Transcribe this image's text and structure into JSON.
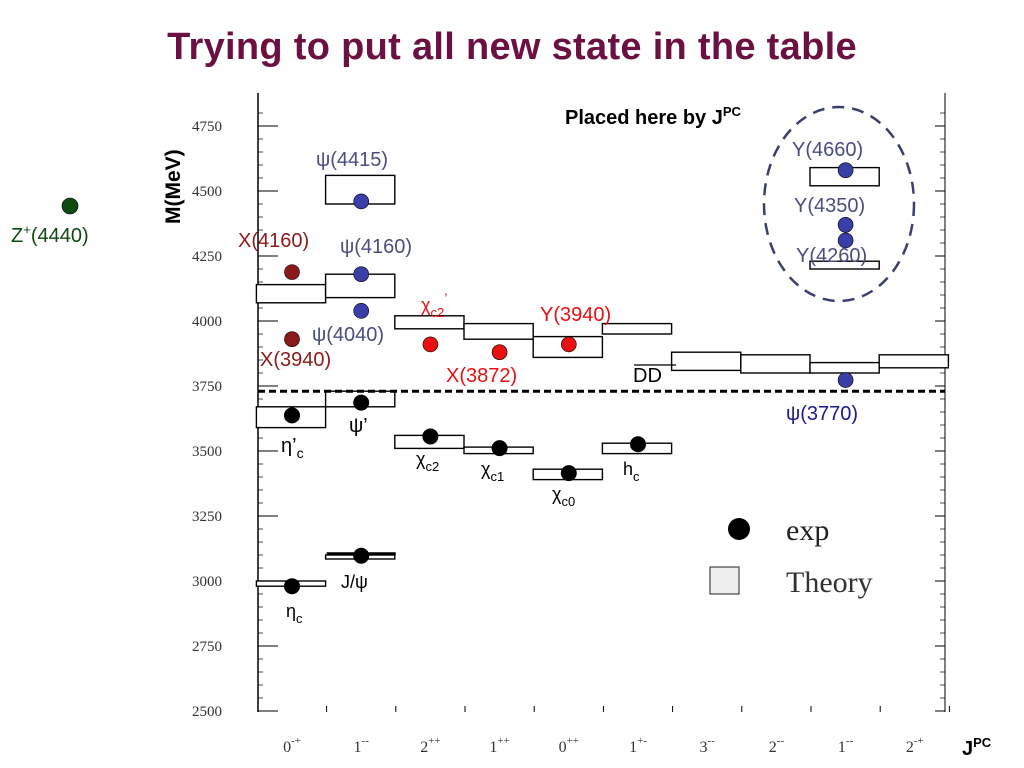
{
  "slide": {
    "title": "Trying to put all new state in the table"
  },
  "colors": {
    "title": "#6b1040",
    "exp": "#000000",
    "blue": "#3a3fa8",
    "blue_label": "#4b4d7e",
    "darkred": "#8b1a1a",
    "red": "#e81010",
    "green": "#0d4a12",
    "psi3770_label": "#1a1a8a"
  },
  "chart_data": {
    "type": "scatter",
    "title": "",
    "xlabel": "J^PC",
    "ylabel": "M(MeV)",
    "ylim": [
      2500,
      4800
    ],
    "yticks": [
      2500,
      2750,
      3000,
      3250,
      3500,
      3750,
      4000,
      4250,
      4500,
      4750
    ],
    "categories": [
      {
        "sup": "-+",
        "base": "0"
      },
      {
        "sup": "--",
        "base": "1"
      },
      {
        "sup": "++",
        "base": "2"
      },
      {
        "sup": "++",
        "base": "1"
      },
      {
        "sup": "++",
        "base": "0"
      },
      {
        "sup": "+-",
        "base": "1"
      },
      {
        "sup": "--",
        "base": "3"
      },
      {
        "sup": "--",
        "base": "2"
      },
      {
        "sup": "--",
        "base": "1"
      },
      {
        "sup": "-+",
        "base": "2"
      }
    ],
    "dd_threshold": 3730,
    "dd_label": "DD",
    "theory": [
      {
        "cat": 0,
        "low": 2980,
        "high": 3000
      },
      {
        "cat": 1,
        "low": 3090,
        "high": 3100
      },
      {
        "cat": 0,
        "low": 3590,
        "high": 3670
      },
      {
        "cat": 1,
        "low": 3670,
        "high": 3730
      },
      {
        "cat": 2,
        "low": 3510,
        "high": 3560
      },
      {
        "cat": 3,
        "low": 3490,
        "high": 3515
      },
      {
        "cat": 4,
        "low": 3390,
        "high": 3430
      },
      {
        "cat": 5,
        "low": 3490,
        "high": 3530
      },
      {
        "cat": 0,
        "low": 4070,
        "high": 4140
      },
      {
        "cat": 1,
        "low": 4090,
        "high": 4180
      },
      {
        "cat": 1,
        "low": 4450,
        "high": 4560
      },
      {
        "cat": 2,
        "low": 3970,
        "high": 4020
      },
      {
        "cat": 3,
        "low": 3930,
        "high": 3990
      },
      {
        "cat": 4,
        "low": 3860,
        "high": 3940
      },
      {
        "cat": 5,
        "low": 3950,
        "high": 3990
      },
      {
        "cat": 6,
        "low": 3810,
        "high": 3880
      },
      {
        "cat": 7,
        "low": 3800,
        "high": 3870
      },
      {
        "cat": 8,
        "low": 3800,
        "high": 3840
      },
      {
        "cat": 9,
        "low": 3820,
        "high": 3870
      },
      {
        "cat": 8,
        "low": 4200,
        "high": 4230
      },
      {
        "cat": 8,
        "low": 4520,
        "high": 4590
      }
    ],
    "states": [
      {
        "name": "eta_c",
        "cat": 0,
        "mass": 2980,
        "color": "exp",
        "label": {
          "base": "η",
          "sub": "c",
          "sup": "",
          "color": "exp"
        }
      },
      {
        "name": "jpsi",
        "cat": 1,
        "mass": 3097,
        "color": "exp",
        "label": {
          "base": "J/ψ",
          "sub": "",
          "sup": "",
          "color": "exp"
        }
      },
      {
        "name": "eta_c_prime",
        "cat": 0,
        "mass": 3637,
        "color": "exp",
        "label": {
          "base": "η’",
          "sub": "c",
          "sup": "",
          "color": "exp"
        }
      },
      {
        "name": "psi_prime",
        "cat": 1,
        "mass": 3686,
        "color": "exp",
        "label": {
          "base": "ψ’",
          "sub": "",
          "sup": "",
          "color": "exp"
        }
      },
      {
        "name": "chi_c2",
        "cat": 2,
        "mass": 3556,
        "color": "exp",
        "label": {
          "base": "χ",
          "sub": "c2",
          "sup": "",
          "color": "exp"
        }
      },
      {
        "name": "chi_c1",
        "cat": 3,
        "mass": 3511,
        "color": "exp",
        "label": {
          "base": "χ",
          "sub": "c1",
          "sup": "",
          "color": "exp"
        }
      },
      {
        "name": "chi_c0",
        "cat": 4,
        "mass": 3415,
        "color": "exp",
        "label": {
          "base": "χ",
          "sub": "c0",
          "sup": "",
          "color": "exp"
        }
      },
      {
        "name": "h_c",
        "cat": 5,
        "mass": 3526,
        "color": "exp",
        "label": {
          "base": "h",
          "sub": "c",
          "sup": "",
          "color": "exp"
        }
      },
      {
        "name": "psi3770",
        "cat": 8,
        "mass": 3773,
        "color": "blue",
        "label": {
          "base": "ψ(3770)",
          "sub": "",
          "sup": "",
          "color": "psi3770_label"
        }
      },
      {
        "name": "psi4040",
        "cat": 1,
        "mass": 4039,
        "color": "blue",
        "label": {
          "base": "ψ(4040)",
          "sub": "",
          "sup": "",
          "color": "blue_label"
        }
      },
      {
        "name": "psi4160",
        "cat": 1,
        "mass": 4180,
        "color": "blue",
        "label": {
          "base": "ψ(4160)",
          "sub": "",
          "sup": "",
          "color": "blue_label"
        }
      },
      {
        "name": "psi4415",
        "cat": 1,
        "mass": 4460,
        "color": "blue",
        "label": {
          "base": "ψ(4415)",
          "sub": "",
          "sup": "",
          "color": "blue_label"
        }
      },
      {
        "name": "x3940",
        "cat": 0,
        "mass": 3930,
        "color": "darkred",
        "label": {
          "base": "X(3940)",
          "sub": "",
          "sup": "",
          "color": "darkred"
        }
      },
      {
        "name": "x4160",
        "cat": 0,
        "mass": 4188,
        "color": "darkred",
        "label": {
          "base": "X(4160)",
          "sub": "",
          "sup": "",
          "color": "darkred"
        }
      },
      {
        "name": "chi_c2_prime",
        "cat": 2,
        "mass": 3910,
        "color": "red",
        "label": {
          "base": "χ",
          "sub": "c2",
          "sup": "’",
          "color": "red"
        }
      },
      {
        "name": "x3872",
        "cat": 3,
        "mass": 3880,
        "color": "red",
        "label": {
          "base": "X(3872)",
          "sub": "",
          "sup": "",
          "color": "red"
        }
      },
      {
        "name": "y3940",
        "cat": 4,
        "mass": 3910,
        "color": "red",
        "label": {
          "base": "Y(3940)",
          "sub": "",
          "sup": "",
          "color": "red"
        }
      },
      {
        "name": "y4260",
        "cat": 8,
        "mass": 4310,
        "color": "blue",
        "label": {
          "base": "Y(4260)",
          "sub": "",
          "sup": "",
          "color": "blue_label"
        }
      },
      {
        "name": "y4350",
        "cat": 8,
        "mass": 4370,
        "color": "blue",
        "label": {
          "base": "Y(4350)",
          "sub": "",
          "sup": "",
          "color": "blue_label"
        }
      },
      {
        "name": "y4660",
        "cat": 8,
        "mass": 4580,
        "color": "blue",
        "label": {
          "base": "Y(4660)",
          "sub": "",
          "sup": "",
          "color": "blue_label"
        }
      }
    ],
    "outside_state": {
      "name": "Z+(4440)",
      "base": "Z",
      "sup": "+",
      "rest": "(4440)",
      "color": "green"
    },
    "note": {
      "text": "Placed here by J",
      "sup": "PC"
    },
    "legend": {
      "exp": "exp",
      "theory": "Theory",
      "placement": "bottom-right"
    }
  }
}
